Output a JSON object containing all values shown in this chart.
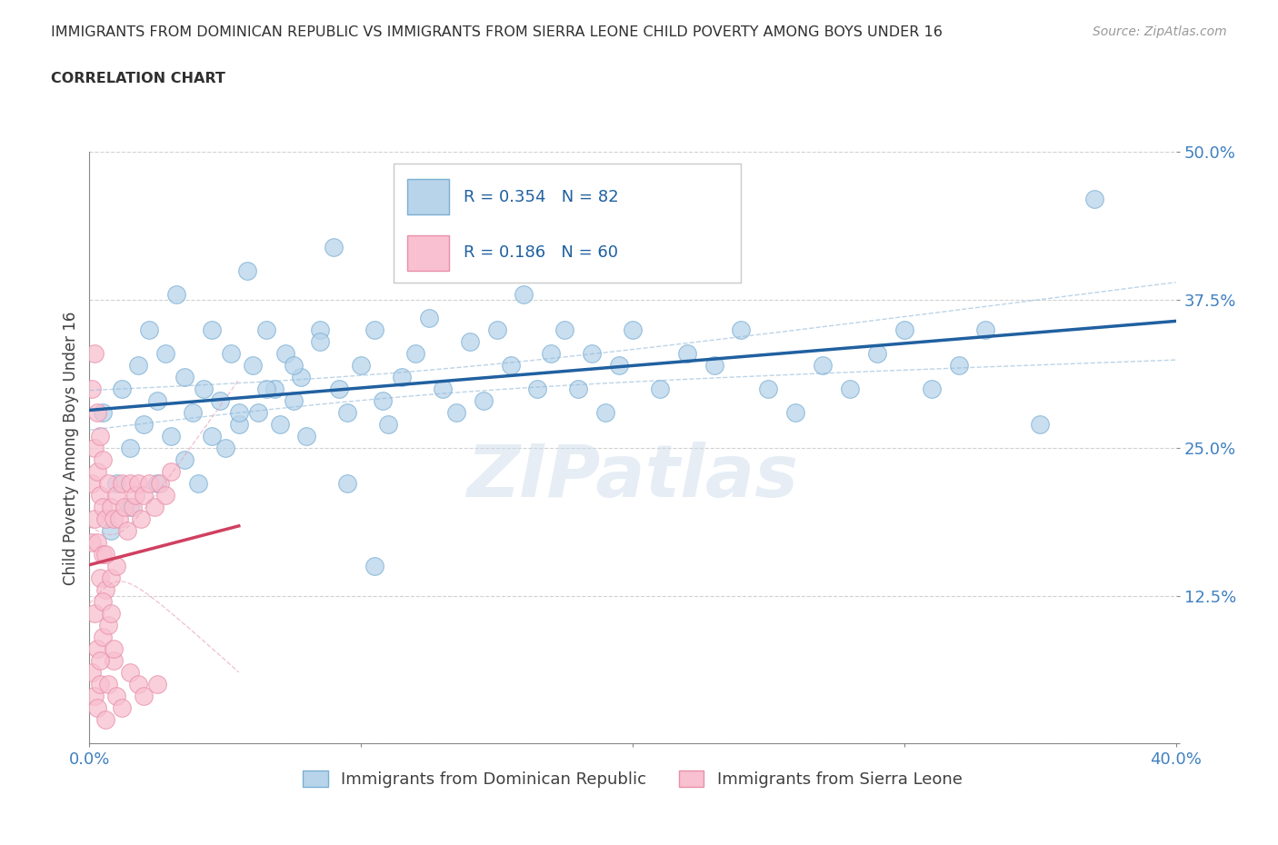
{
  "title_line1": "IMMIGRANTS FROM DOMINICAN REPUBLIC VS IMMIGRANTS FROM SIERRA LEONE CHILD POVERTY AMONG BOYS UNDER 16",
  "title_line2": "CORRELATION CHART",
  "source": "Source: ZipAtlas.com",
  "ylabel": "Child Poverty Among Boys Under 16",
  "xlim": [
    0.0,
    0.4
  ],
  "ylim": [
    0.0,
    0.5
  ],
  "series1_label": "Immigrants from Dominican Republic",
  "series1_color": "#b8d4ea",
  "series1_edge": "#7aafd4",
  "series1_R": 0.354,
  "series1_N": 82,
  "series1_line_color": "#2060a0",
  "series2_label": "Immigrants from Sierra Leone",
  "series2_color": "#f8c0d0",
  "series2_edge": "#e890a8",
  "series2_R": 0.186,
  "series2_N": 60,
  "series2_line_color": "#d04060",
  "legend_color": "#2060a0",
  "watermark": "ZIPatlas",
  "background_color": "#ffffff",
  "grid_color": "#cccccc",
  "title_color": "#303030",
  "tick_color": "#4080c0",
  "axis_color": "#888888"
}
